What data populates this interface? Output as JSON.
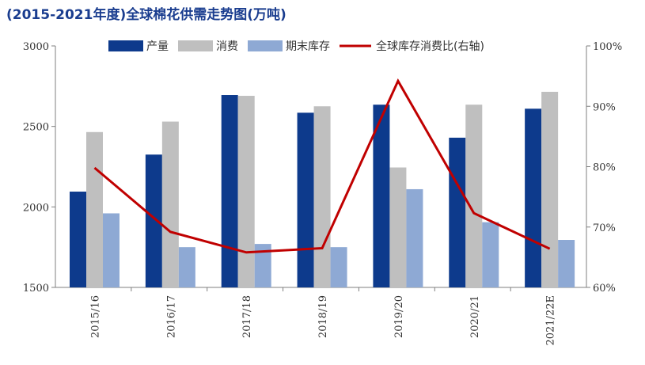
{
  "title": "(2015-2021年度)全球棉花供需走势图(万吨)",
  "chart_data": {
    "type": "bar",
    "title": "(2015-2021年度)全球棉花供需走势图(万吨)",
    "categories": [
      "2015/16",
      "2016/17",
      "2017/18",
      "2018/19",
      "2019/20",
      "2020/21",
      "2021/22E"
    ],
    "series": [
      {
        "name": "产量",
        "type": "bar",
        "axis": "left",
        "color": "#0d3a8c",
        "values": [
          2095,
          2325,
          2695,
          2585,
          2635,
          2430,
          2610
        ]
      },
      {
        "name": "消费",
        "type": "bar",
        "axis": "left",
        "color": "#bfbfbf",
        "values": [
          2465,
          2530,
          2690,
          2625,
          2245,
          2635,
          2715
        ]
      },
      {
        "name": "期末库存",
        "type": "bar",
        "axis": "left",
        "color": "#8ea9d4",
        "values": [
          1960,
          1750,
          1770,
          1750,
          2110,
          1905,
          1795
        ]
      },
      {
        "name": "全球库存消费比(右轴)",
        "type": "line",
        "axis": "right",
        "color": "#c00000",
        "values": [
          79.8,
          69.2,
          65.8,
          66.5,
          94.2,
          72.3,
          66.4
        ]
      }
    ],
    "left_axis": {
      "ylim": [
        1500,
        3000
      ],
      "ticks": [
        "1500",
        "2000",
        "2500",
        "3000"
      ]
    },
    "right_axis": {
      "ylim": [
        60,
        100
      ],
      "ticks": [
        "60%",
        "70%",
        "80%",
        "90%",
        "100%"
      ]
    },
    "legend_position": "top"
  }
}
